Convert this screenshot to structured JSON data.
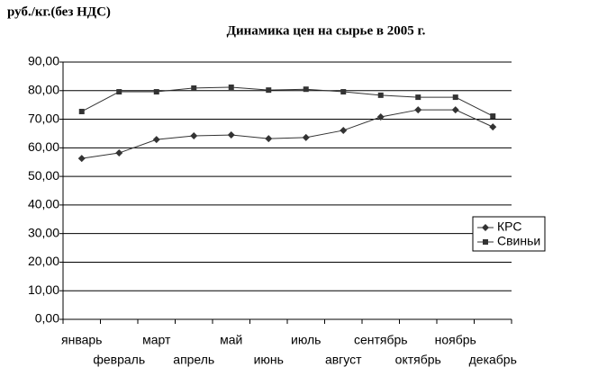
{
  "chart_data": {
    "type": "line",
    "title": "Динамика цен на сырье в 2005 г.",
    "y_label": "руб./кг.(без НДС)",
    "categories": [
      "январь",
      "февраль",
      "март",
      "апрель",
      "май",
      "июнь",
      "июль",
      "август",
      "сентябрь",
      "октябрь",
      "ноябрь",
      "декабрь"
    ],
    "series": [
      {
        "name": "КРС",
        "color": "#333333",
        "marker": "diamond",
        "values": [
          56.3,
          58.2,
          62.9,
          64.2,
          64.5,
          63.2,
          63.6,
          66.1,
          70.8,
          73.3,
          73.3,
          67.3
        ]
      },
      {
        "name": "Свиньи",
        "color": "#333333",
        "marker": "square",
        "values": [
          72.7,
          79.6,
          79.6,
          80.9,
          81.2,
          80.2,
          80.5,
          79.6,
          78.4,
          77.7,
          77.7,
          71.1
        ]
      }
    ],
    "ylim": [
      0,
      90
    ],
    "yticks": [
      {
        "value": 0,
        "label": "0,00"
      },
      {
        "value": 10,
        "label": "10,00"
      },
      {
        "value": 20,
        "label": "20,00"
      },
      {
        "value": 30,
        "label": "30,00"
      },
      {
        "value": 40,
        "label": "40,00"
      },
      {
        "value": 50,
        "label": "50,00"
      },
      {
        "value": 60,
        "label": "60,00"
      },
      {
        "value": 70,
        "label": "70,00"
      },
      {
        "value": 80,
        "label": "80,00"
      },
      {
        "value": 90,
        "label": "90,00"
      }
    ],
    "grid": true,
    "legend": "right"
  }
}
